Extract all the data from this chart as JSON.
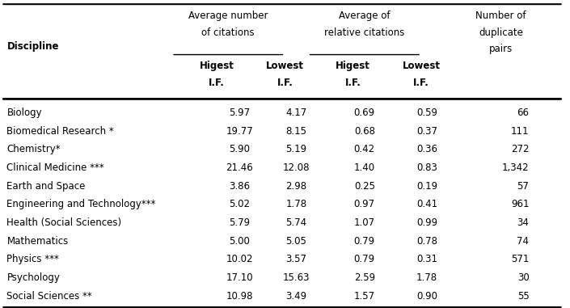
{
  "disciplines": [
    "Biology",
    "Biomedical Research *",
    "Chemistry*",
    "Clinical Medicine ***",
    "Earth and Space",
    "Engineering and Technology***",
    "Health (Social Sciences)",
    "Mathematics",
    "Physics ***",
    "Psychology",
    "Social Sciences **"
  ],
  "avg_citations_highest": [
    5.97,
    19.77,
    5.9,
    21.46,
    3.86,
    5.02,
    5.79,
    5.0,
    10.02,
    17.1,
    10.98
  ],
  "avg_citations_lowest": [
    4.17,
    8.15,
    5.19,
    12.08,
    2.98,
    1.78,
    5.74,
    5.05,
    3.57,
    15.63,
    3.49
  ],
  "avg_rel_citations_highest": [
    0.69,
    0.68,
    0.42,
    1.4,
    0.25,
    0.97,
    1.07,
    0.79,
    0.79,
    2.59,
    1.57
  ],
  "avg_rel_citations_lowest": [
    0.59,
    0.37,
    0.36,
    0.83,
    0.19,
    0.41,
    0.99,
    0.78,
    0.31,
    1.78,
    0.9
  ],
  "num_duplicate_pairs": [
    "66",
    "111",
    "272",
    "1,342",
    "57",
    "961",
    "34",
    "74",
    "571",
    "30",
    "55"
  ],
  "col_header_line1": [
    "Average number",
    "",
    "Average of",
    "",
    "Number of"
  ],
  "col_header_line2": [
    "of citations",
    "",
    "relative citations",
    "",
    "duplicate"
  ],
  "col_header_line3": [
    "",
    "",
    "",
    "",
    "pairs"
  ],
  "subheader_left": "Higest\nI.F.",
  "subheader_right_1": "Lowest\nI.F.",
  "subheader_right_2": "Higest\nI.F.",
  "subheader_right_3": "Lowest\nI.F.",
  "discipline_label": "Discipline",
  "font_size": 8.5,
  "header_font_size": 8.5,
  "bg_color": "#ffffff",
  "text_color": "#000000"
}
